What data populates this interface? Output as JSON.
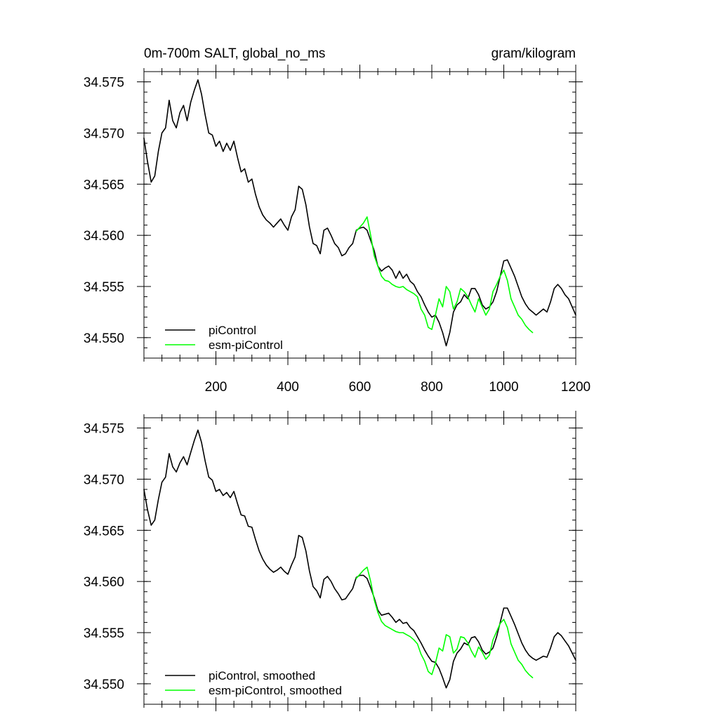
{
  "header": {
    "title": "0m-700m SALT, global_no_ms",
    "units": "gram/kilogram"
  },
  "colors": {
    "piControl": "#000000",
    "esm_piControl": "#00ff00"
  },
  "chart_data": [
    {
      "type": "line",
      "title": "0m-700m SALT, global_no_ms",
      "units_label": "gram/kilogram",
      "xlim": [
        0,
        1200
      ],
      "ylim": [
        34.548,
        34.576
      ],
      "x_ticks": [
        200,
        400,
        600,
        800,
        1000,
        1200
      ],
      "x_tick_labels": [
        "200",
        "400",
        "600",
        "800",
        "1000",
        "1200"
      ],
      "y_ticks": [
        34.55,
        34.555,
        34.56,
        34.565,
        34.57,
        34.575
      ],
      "y_tick_labels": [
        "34.550",
        "34.555",
        "34.560",
        "34.565",
        "34.570",
        "34.575"
      ],
      "legend_position": "bottom-left",
      "series": [
        {
          "name": "piControl",
          "color": "#000000",
          "x": [
            0,
            10,
            20,
            30,
            40,
            50,
            60,
            70,
            80,
            90,
            100,
            110,
            120,
            130,
            140,
            150,
            160,
            170,
            180,
            190,
            200,
            210,
            220,
            230,
            240,
            250,
            260,
            270,
            280,
            290,
            300,
            310,
            320,
            330,
            340,
            350,
            360,
            370,
            380,
            390,
            400,
            410,
            420,
            430,
            440,
            450,
            460,
            470,
            480,
            490,
            500,
            510,
            520,
            530,
            540,
            550,
            560,
            570,
            580,
            590,
            600,
            610,
            620,
            630,
            640,
            650,
            660,
            670,
            680,
            690,
            700,
            710,
            720,
            730,
            740,
            750,
            760,
            770,
            780,
            790,
            800,
            810,
            820,
            830,
            840,
            850,
            860,
            870,
            880,
            890,
            900,
            910,
            920,
            930,
            940,
            950,
            960,
            970,
            980,
            990,
            1000,
            1010,
            1020,
            1030,
            1040,
            1050,
            1060,
            1070,
            1080,
            1090,
            1100,
            1110,
            1120,
            1130,
            1140,
            1150,
            1160,
            1170,
            1180,
            1190,
            1200
          ],
          "y": [
            34.5695,
            34.5672,
            34.5652,
            34.5658,
            34.5682,
            34.57,
            34.5705,
            34.5732,
            34.5712,
            34.5705,
            34.572,
            34.5727,
            34.5712,
            34.573,
            34.5742,
            34.5752,
            34.5738,
            34.5718,
            34.57,
            34.5698,
            34.5687,
            34.5692,
            34.5682,
            34.569,
            34.5683,
            34.5692,
            34.5676,
            34.5662,
            34.5665,
            34.5652,
            34.5655,
            34.564,
            34.5628,
            34.562,
            34.5615,
            34.5612,
            34.5608,
            34.5612,
            34.5616,
            34.561,
            34.5605,
            34.5618,
            34.5625,
            34.5648,
            34.5645,
            34.563,
            34.5608,
            34.5592,
            34.559,
            34.5582,
            34.5605,
            34.5607,
            34.56,
            34.5592,
            34.5588,
            34.558,
            34.5582,
            34.5588,
            34.5592,
            34.5605,
            34.5607,
            34.5608,
            34.5605,
            34.5595,
            34.5585,
            34.557,
            34.5565,
            34.5568,
            34.557,
            34.5566,
            34.5558,
            34.5565,
            34.5558,
            34.5562,
            34.5555,
            34.5552,
            34.5545,
            34.554,
            34.5532,
            34.5525,
            34.552,
            34.5522,
            34.5515,
            34.5505,
            34.5492,
            34.5505,
            34.5525,
            34.5532,
            34.5535,
            34.5542,
            34.5538,
            34.5548,
            34.5548,
            34.5542,
            34.5532,
            34.5528,
            34.553,
            34.5535,
            34.5545,
            34.556,
            34.5575,
            34.5576,
            34.5568,
            34.556,
            34.555,
            34.554,
            34.5533,
            34.5528,
            34.5525,
            34.5522,
            34.5525,
            34.5528,
            34.5525,
            34.5535,
            34.5548,
            34.5552,
            34.5548,
            34.5542,
            34.5538,
            34.553,
            34.5522
          ]
        },
        {
          "name": "esm-piControl",
          "color": "#00ff00",
          "x": [
            590,
            600,
            610,
            620,
            630,
            640,
            650,
            660,
            670,
            680,
            690,
            700,
            710,
            720,
            730,
            740,
            750,
            760,
            770,
            780,
            790,
            800,
            810,
            820,
            830,
            840,
            850,
            860,
            870,
            880,
            890,
            900,
            910,
            920,
            930,
            940,
            950,
            960,
            970,
            980,
            990,
            1000,
            1010,
            1020,
            1030,
            1040,
            1050,
            1060,
            1070,
            1080
          ],
          "y": [
            34.5604,
            34.5608,
            34.5612,
            34.5618,
            34.56,
            34.558,
            34.557,
            34.556,
            34.5556,
            34.5555,
            34.5552,
            34.555,
            34.5549,
            34.555,
            34.5547,
            34.5545,
            34.5543,
            34.554,
            34.5528,
            34.5522,
            34.551,
            34.5508,
            34.5522,
            34.5538,
            34.553,
            34.555,
            34.5545,
            34.5528,
            34.5535,
            34.5548,
            34.5545,
            34.554,
            34.5532,
            34.5525,
            34.5538,
            34.553,
            34.5522,
            34.5528,
            34.5545,
            34.5552,
            34.556,
            34.5566,
            34.5556,
            34.5538,
            34.553,
            34.5522,
            34.5518,
            34.5512,
            34.5508,
            34.5505
          ]
        }
      ]
    },
    {
      "type": "line",
      "title": "",
      "xlim": [
        0,
        1200
      ],
      "ylim": [
        34.548,
        34.576
      ],
      "y_ticks": [
        34.55,
        34.555,
        34.56,
        34.565,
        34.57,
        34.575
      ],
      "y_tick_labels": [
        "34.550",
        "34.555",
        "34.560",
        "34.565",
        "34.570",
        "34.575"
      ],
      "legend_position": "bottom-left",
      "series": [
        {
          "name": "piControl, smoothed",
          "color": "#000000",
          "x": [
            0,
            10,
            20,
            30,
            40,
            50,
            60,
            70,
            80,
            90,
            100,
            110,
            120,
            130,
            140,
            150,
            160,
            170,
            180,
            190,
            200,
            210,
            220,
            230,
            240,
            250,
            260,
            270,
            280,
            290,
            300,
            310,
            320,
            330,
            340,
            350,
            360,
            370,
            380,
            390,
            400,
            410,
            420,
            430,
            440,
            450,
            460,
            470,
            480,
            490,
            500,
            510,
            520,
            530,
            540,
            550,
            560,
            570,
            580,
            590,
            600,
            610,
            620,
            630,
            640,
            650,
            660,
            670,
            680,
            690,
            700,
            710,
            720,
            730,
            740,
            750,
            760,
            770,
            780,
            790,
            800,
            810,
            820,
            830,
            840,
            850,
            860,
            870,
            880,
            890,
            900,
            910,
            920,
            930,
            940,
            950,
            960,
            970,
            980,
            990,
            1000,
            1010,
            1020,
            1030,
            1040,
            1050,
            1060,
            1070,
            1080,
            1090,
            1100,
            1110,
            1120,
            1130,
            1140,
            1150,
            1160,
            1170,
            1180,
            1190,
            1200
          ],
          "y": [
            34.569,
            34.567,
            34.5655,
            34.566,
            34.568,
            34.5697,
            34.5702,
            34.5725,
            34.5712,
            34.5707,
            34.5716,
            34.5722,
            34.5714,
            34.5726,
            34.5738,
            34.5748,
            34.5736,
            34.5718,
            34.5702,
            34.5699,
            34.5688,
            34.569,
            34.5684,
            34.5687,
            34.5682,
            34.5688,
            34.5676,
            34.5665,
            34.5664,
            34.5654,
            34.5653,
            34.5641,
            34.563,
            34.5622,
            34.5616,
            34.5612,
            34.5609,
            34.5611,
            34.5614,
            34.561,
            34.5607,
            34.5616,
            34.5624,
            34.5645,
            34.5643,
            34.563,
            34.561,
            34.5595,
            34.5591,
            34.5584,
            34.5602,
            34.5605,
            34.56,
            34.5593,
            34.5588,
            34.5582,
            34.5583,
            34.5588,
            34.5593,
            34.5604,
            34.5606,
            34.5606,
            34.5603,
            34.5594,
            34.5584,
            34.5572,
            34.5567,
            34.5568,
            34.5569,
            34.5565,
            34.556,
            34.5563,
            34.5559,
            34.556,
            34.5555,
            34.5552,
            34.5546,
            34.554,
            34.5533,
            34.5527,
            34.5522,
            34.5521,
            34.5515,
            34.5506,
            34.5496,
            34.5504,
            34.5522,
            34.553,
            34.5534,
            34.554,
            34.5538,
            34.5545,
            34.5546,
            34.5541,
            34.5533,
            34.5529,
            34.5531,
            34.5535,
            34.5546,
            34.556,
            34.5574,
            34.5574,
            34.5566,
            34.5558,
            34.5549,
            34.554,
            34.5533,
            34.5528,
            34.5525,
            34.5523,
            34.5525,
            34.5527,
            34.5526,
            34.5535,
            34.5546,
            34.555,
            34.5547,
            34.5542,
            34.5537,
            34.553,
            34.5523
          ]
        },
        {
          "name": "esm-piControl, smoothed",
          "color": "#00ff00",
          "x": [
            590,
            600,
            610,
            620,
            630,
            640,
            650,
            660,
            670,
            680,
            690,
            700,
            710,
            720,
            730,
            740,
            750,
            760,
            770,
            780,
            790,
            800,
            810,
            820,
            830,
            840,
            850,
            860,
            870,
            880,
            890,
            900,
            910,
            920,
            930,
            940,
            950,
            960,
            970,
            980,
            990,
            1000,
            1010,
            1020,
            1030,
            1040,
            1050,
            1060,
            1070,
            1080
          ],
          "y": [
            34.5603,
            34.5607,
            34.5611,
            34.5614,
            34.56,
            34.5582,
            34.557,
            34.5561,
            34.5557,
            34.5555,
            34.5553,
            34.5551,
            34.555,
            34.555,
            34.5548,
            34.5546,
            34.5543,
            34.5539,
            34.5529,
            34.5522,
            34.5512,
            34.5509,
            34.552,
            34.5535,
            34.5532,
            34.5548,
            34.5546,
            34.553,
            34.5534,
            34.5546,
            34.5545,
            34.554,
            34.5532,
            34.5526,
            34.5536,
            34.5531,
            34.5524,
            34.5528,
            34.5543,
            34.5551,
            34.5559,
            34.5563,
            34.5555,
            34.5539,
            34.5531,
            34.5523,
            34.5519,
            34.5513,
            34.5509,
            34.5506
          ]
        }
      ]
    }
  ]
}
